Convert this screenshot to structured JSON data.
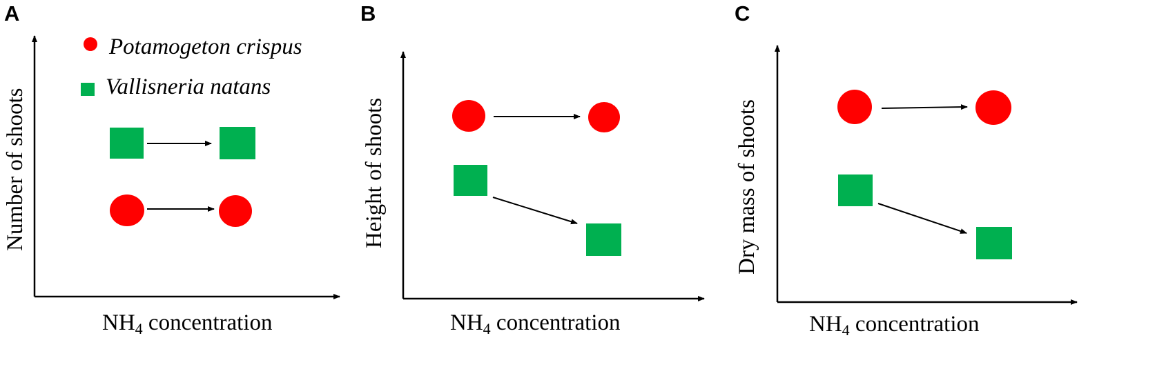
{
  "colors": {
    "potamogeton": "#ff0000",
    "vallisneria": "#00b050",
    "axis": "#000000",
    "arrow": "#000000"
  },
  "legend": {
    "potamogeton": "Potamogeton crispus",
    "vallisneria": "Vallisneria natans"
  },
  "panels": [
    {
      "letter": "A",
      "ylabel": "Number of shoots",
      "xlabel_main": "NH",
      "xlabel_sub": "4",
      "xlabel_rest": " concentration"
    },
    {
      "letter": "B",
      "ylabel": "Height of shoots",
      "xlabel_main": "NH",
      "xlabel_sub": "4",
      "xlabel_rest": " concentration"
    },
    {
      "letter": "C",
      "ylabel": "Dry mass of shoots",
      "xlabel_main": "NH",
      "xlabel_sub": "4",
      "xlabel_rest": " concentration"
    }
  ]
}
